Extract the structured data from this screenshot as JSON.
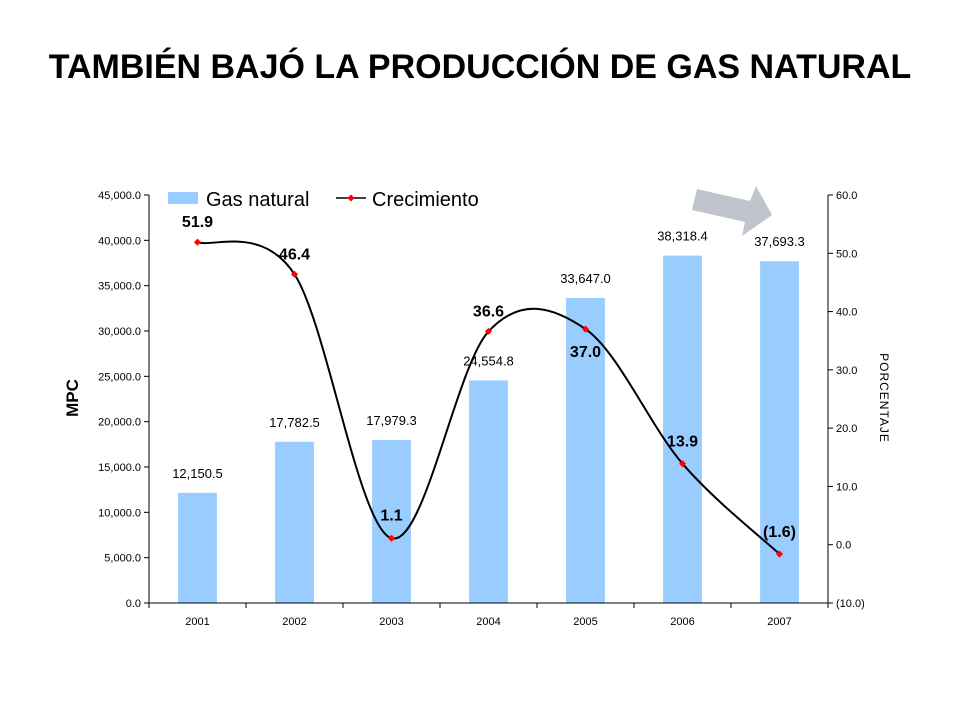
{
  "title": "TAMBIÉN BAJÓ LA PRODUCCIÓN DE GAS NATURAL",
  "colors": {
    "bar": "#99CCFF",
    "line": "#000000",
    "marker": "#FF0000",
    "arrow": "#C0C4CC"
  },
  "icons": {
    "trend": "right-arrow-icon"
  },
  "chart_data": {
    "type": "bar",
    "categories": [
      "2001",
      "2002",
      "2003",
      "2004",
      "2005",
      "2006",
      "2007"
    ],
    "series": [
      {
        "name": "Gas natural",
        "type": "bar",
        "axis": "left",
        "values": [
          12150.5,
          17782.5,
          17979.3,
          24554.8,
          33647.0,
          38318.4,
          37693.3
        ],
        "labels": [
          "12,150.5",
          "17,782.5",
          "17,979.3",
          "24,554.8",
          "33,647.0",
          "38,318.4",
          "37,693.3"
        ]
      },
      {
        "name": "Crecimiento",
        "type": "line",
        "axis": "right",
        "smooth": true,
        "values": [
          51.9,
          46.4,
          1.1,
          36.6,
          37.0,
          13.9,
          -1.6
        ],
        "labels": [
          "51.9",
          "46.4",
          "1.1",
          "36.6",
          "37.0",
          "13.9",
          "(1.6)"
        ]
      }
    ],
    "ylabel": "MPC",
    "y2label": "PORCENTAJE",
    "ylim": [
      0,
      45000
    ],
    "y2lim": [
      -10,
      60
    ],
    "yticks": [
      "0.0",
      "5,000.0",
      "10,000.0",
      "15,000.0",
      "20,000.0",
      "25,000.0",
      "30,000.0",
      "35,000.0",
      "40,000.0",
      "45,000.0"
    ],
    "y2ticks": [
      "(10.0)",
      "0.0",
      "10.0",
      "20.0",
      "30.0",
      "40.0",
      "50.0",
      "60.0"
    ],
    "legend": "top",
    "grid": false
  }
}
